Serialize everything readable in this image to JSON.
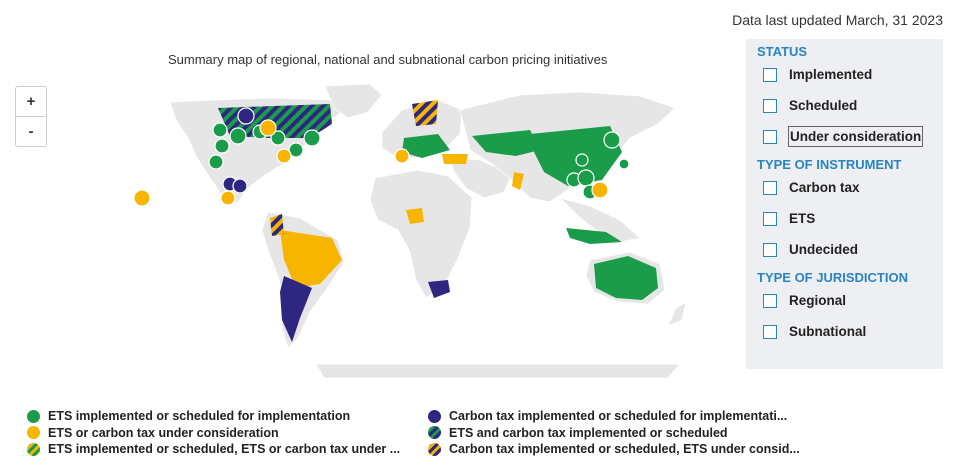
{
  "updated": "Data last updated March, 31 2023",
  "map_title": "Summary map of regional, national and subnational carbon pricing initiatives",
  "zoom": {
    "in": "+",
    "out": "-"
  },
  "filters": {
    "status_title": "STATUS",
    "status": [
      "Implemented",
      "Scheduled",
      "Under consideration"
    ],
    "instrument_title": "TYPE OF INSTRUMENT",
    "instrument": [
      "Carbon tax",
      "ETS",
      "Undecided"
    ],
    "jurisdiction_title": "TYPE OF JURISDICTION",
    "jurisdiction": [
      "Regional",
      "Subnational"
    ]
  },
  "legend": {
    "left": [
      "ETS implemented or scheduled for implementation",
      "ETS or carbon tax under consideration",
      "ETS implemented or scheduled, ETS or carbon tax under ..."
    ],
    "right": [
      "Carbon tax implemented or scheduled for implementati...",
      "ETS and carbon tax implemented or scheduled",
      "Carbon tax implemented or scheduled, ETS under consid..."
    ]
  },
  "colors": {
    "ets": "#1a9c4a",
    "consideration": "#f7b500",
    "carbon_tax": "#2e2680",
    "land": "#e6e6e6"
  }
}
